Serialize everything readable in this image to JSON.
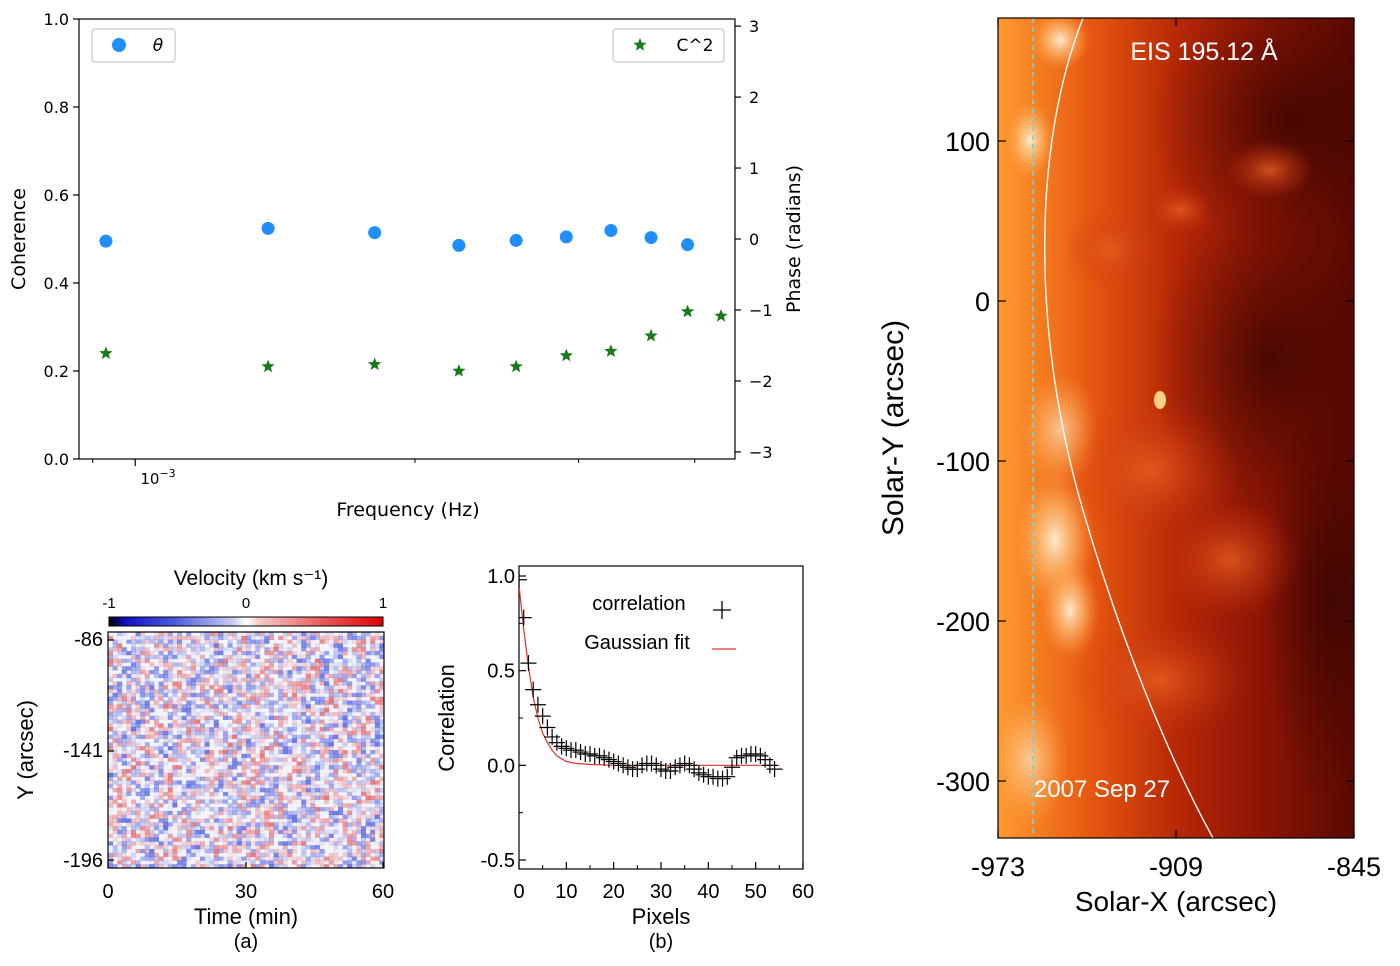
{
  "chart_data": [
    {
      "type": "scatter",
      "panel": "top",
      "xlabel": "Frequency (Hz)",
      "ylabel": "Coherence",
      "y2label": "Phase (radians)",
      "xscale": "log",
      "xtick_label": "10^-3",
      "ylim": [
        0.0,
        1.0
      ],
      "y2lim": [
        -3.1,
        3.1
      ],
      "yticks": [
        "0.0",
        "0.2",
        "0.4",
        "0.6",
        "0.8",
        "1.0"
      ],
      "y2ticks": [
        "3",
        "2",
        "1",
        "0",
        "−1",
        "−2",
        "−3"
      ],
      "series": [
        {
          "name": "θ",
          "axis": "right",
          "marker": "circle",
          "color": "#1f8fff",
          "x": [
            0.00093,
            0.00139,
            0.00181,
            0.00223,
            0.00257,
            0.00291,
            0.00325,
            0.00359,
            0.00393
          ],
          "values": [
            -0.03,
            0.15,
            0.09,
            -0.09,
            -0.02,
            0.03,
            0.12,
            0.02,
            -0.08
          ]
        },
        {
          "name": "C^2",
          "axis": "left",
          "marker": "star",
          "color": "#1a7a1a",
          "x": [
            0.00093,
            0.00139,
            0.00181,
            0.00223,
            0.00257,
            0.00291,
            0.00325,
            0.00359,
            0.00393,
            0.00427
          ],
          "values": [
            0.24,
            0.21,
            0.215,
            0.2,
            0.21,
            0.235,
            0.245,
            0.28,
            0.335,
            0.325
          ]
        }
      ],
      "legend_left": {
        "label": "θ",
        "position": "top-left"
      },
      "legend_right": {
        "label": "C^2",
        "position": "top-right"
      }
    },
    {
      "type": "heatmap",
      "panel": "a",
      "title": "Velocity (km s⁻¹)",
      "colorbar_ticks": [
        "-1",
        "0",
        "1"
      ],
      "xlabel": "Time (min)",
      "ylabel": "Y (arcsec)",
      "xticks": [
        "0",
        "30",
        "60"
      ],
      "yticks": [
        "-86",
        "-141",
        "-196"
      ],
      "caption": "(a)"
    },
    {
      "type": "scatter",
      "panel": "b",
      "xlabel": "Pixels",
      "ylabel": "Correlation",
      "xlim": [
        0,
        60
      ],
      "ylim": [
        -0.5,
        1.0
      ],
      "xticks": [
        "0",
        "10",
        "20",
        "30",
        "40",
        "50",
        "60"
      ],
      "yticks": [
        "1.0",
        "0.5",
        "0.0",
        "-0.5"
      ],
      "caption": "(b)",
      "series": [
        {
          "name": "correlation",
          "marker": "plus",
          "color": "#000000",
          "x": [
            0,
            1,
            2,
            3,
            4,
            5,
            6,
            7,
            8,
            9,
            10,
            11,
            12,
            13,
            14,
            15,
            16,
            17,
            18,
            19,
            20,
            21,
            22,
            23,
            24,
            25,
            26,
            27,
            28,
            29,
            30,
            31,
            32,
            33,
            34,
            35,
            36,
            37,
            38,
            39,
            40,
            41,
            42,
            43,
            44,
            45,
            46,
            47,
            48,
            49,
            50,
            51,
            52,
            53,
            54
          ],
          "values": [
            0.98,
            0.78,
            0.54,
            0.4,
            0.32,
            0.26,
            0.2,
            0.15,
            0.12,
            0.1,
            0.09,
            0.08,
            0.08,
            0.07,
            0.06,
            0.06,
            0.05,
            0.05,
            0.04,
            0.03,
            0.02,
            0.01,
            0.0,
            -0.01,
            -0.02,
            -0.02,
            0.0,
            0.01,
            0.01,
            0.0,
            -0.02,
            -0.03,
            -0.03,
            -0.01,
            0.0,
            0.01,
            0.0,
            -0.02,
            -0.04,
            -0.05,
            -0.06,
            -0.06,
            -0.07,
            -0.07,
            -0.06,
            -0.01,
            0.04,
            0.05,
            0.05,
            0.06,
            0.06,
            0.05,
            0.03,
            0.0,
            -0.02
          ]
        },
        {
          "name": "Gaussian fit",
          "type": "line",
          "color": "#e03030",
          "x": [
            0,
            1,
            2,
            3,
            4,
            5,
            6,
            7,
            8,
            10,
            12,
            15,
            20,
            30,
            40,
            50,
            55
          ],
          "values": [
            0.95,
            0.72,
            0.52,
            0.36,
            0.25,
            0.17,
            0.12,
            0.08,
            0.05,
            0.02,
            0.01,
            0.005,
            0.0,
            0.0,
            0.0,
            0.0,
            0.0
          ]
        }
      ]
    },
    {
      "type": "heatmap",
      "panel": "right",
      "title": "EIS 195.12 Å",
      "date": "2007 Sep 27",
      "xlabel": "Solar-X (arcsec)",
      "ylabel": "Solar-Y (arcsec)",
      "xticks": [
        "-973",
        "-909",
        "-845"
      ],
      "yticks": [
        "100",
        "0",
        "-100",
        "-200",
        "-300"
      ]
    }
  ]
}
